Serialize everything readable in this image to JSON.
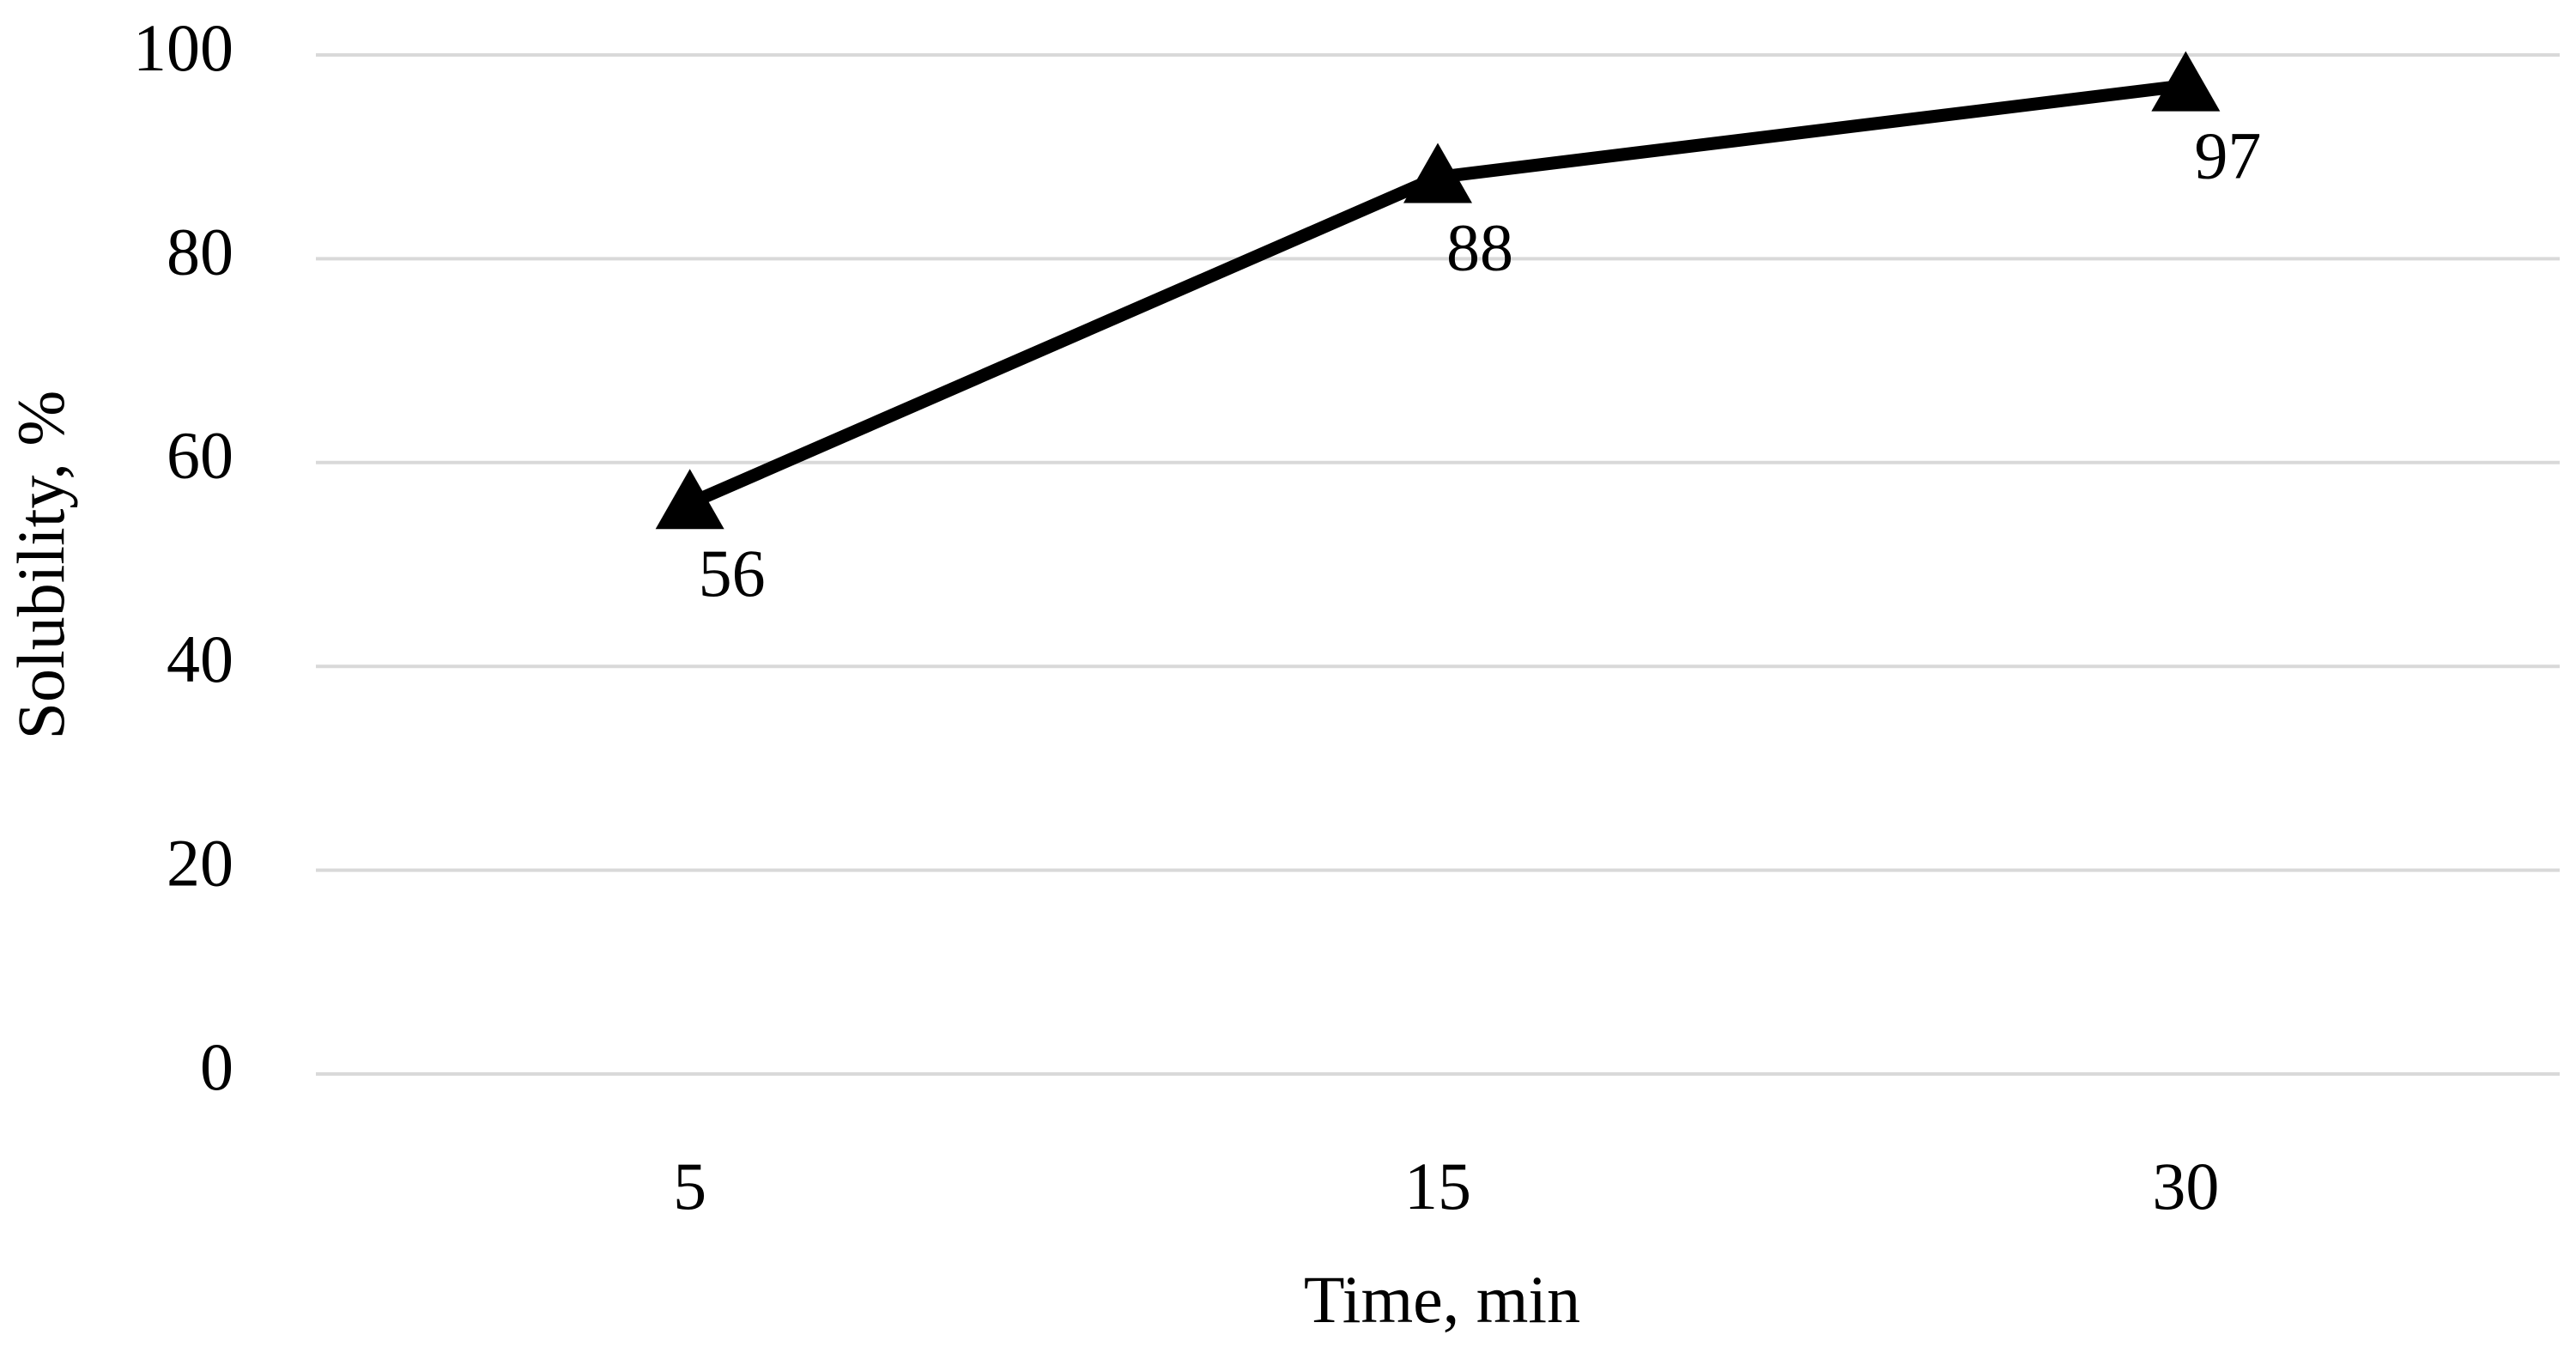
{
  "chart_data": {
    "type": "line",
    "x_label": "Time, min",
    "y_label": "Solubility, %",
    "categories": [
      "5",
      "15",
      "30"
    ],
    "values": [
      56,
      88,
      97
    ],
    "color": "#000000",
    "marker": "triangle",
    "ylim": [
      0,
      100
    ],
    "yticks": [
      0,
      20,
      40,
      60,
      80,
      100
    ],
    "grid": true
  }
}
